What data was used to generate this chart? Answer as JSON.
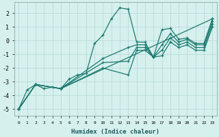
{
  "xlabel": "Humidex (Indice chaleur)",
  "background_color": "#d6f0ee",
  "grid_color": "#b8dbd8",
  "line_color": "#1a7a6e",
  "xlim": [
    -0.5,
    23.5
  ],
  "ylim": [
    -5.5,
    2.8
  ],
  "yticks": [
    -5,
    -4,
    -3,
    -2,
    -1,
    0,
    1,
    2
  ],
  "xticks": [
    0,
    1,
    2,
    3,
    4,
    5,
    6,
    7,
    8,
    9,
    10,
    11,
    12,
    13,
    14,
    15,
    16,
    17,
    18,
    19,
    20,
    21,
    22,
    23
  ],
  "series": [
    {
      "x": [
        0,
        1,
        2,
        3,
        4,
        5,
        6,
        7,
        8,
        9,
        10,
        11,
        12,
        13,
        14,
        15,
        16,
        17,
        18,
        19,
        20,
        21,
        22,
        23
      ],
      "y": [
        -5.0,
        -3.6,
        -3.2,
        -3.5,
        -3.4,
        -3.5,
        -2.8,
        -2.5,
        -2.4,
        -0.2,
        0.4,
        1.6,
        2.4,
        2.3,
        -0.1,
        -0.1,
        -1.2,
        0.8,
        0.9,
        0.1,
        0.2,
        -0.2,
        -0.2,
        1.6
      ]
    },
    {
      "x": [
        0,
        2,
        5,
        23
      ],
      "y": [
        -5.0,
        -3.2,
        -3.5,
        1.6
      ]
    },
    {
      "x": [
        0,
        2,
        5,
        10,
        13,
        14,
        15,
        16,
        17,
        18,
        19,
        20,
        21,
        22,
        23
      ],
      "y": [
        -5.0,
        -3.2,
        -3.5,
        -1.3,
        -0.5,
        -0.3,
        -0.3,
        -1.2,
        -0.3,
        0.5,
        -0.1,
        0.1,
        -0.3,
        -0.3,
        1.4
      ]
    },
    {
      "x": [
        0,
        2,
        5,
        10,
        13,
        14,
        15,
        16,
        17,
        18,
        19,
        20,
        21,
        22,
        23
      ],
      "y": [
        -5.0,
        -3.2,
        -3.5,
        -1.6,
        -1.5,
        -0.5,
        -0.5,
        -1.2,
        -0.7,
        0.2,
        -0.3,
        -0.1,
        -0.5,
        -0.5,
        1.2
      ]
    },
    {
      "x": [
        0,
        2,
        5,
        10,
        13,
        14,
        15,
        16,
        17,
        18,
        19,
        20,
        21,
        22,
        23
      ],
      "y": [
        -5.0,
        -3.2,
        -3.5,
        -2.0,
        -2.5,
        -0.7,
        -0.7,
        -1.2,
        -1.1,
        -0.1,
        -0.5,
        -0.3,
        -0.7,
        -0.7,
        1.0
      ]
    }
  ]
}
